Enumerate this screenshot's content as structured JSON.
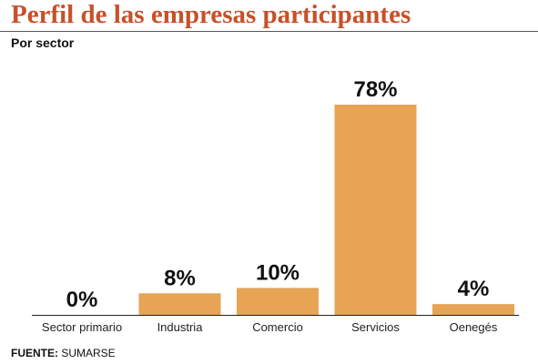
{
  "header": {
    "title": "Perfil de las empresas participantes",
    "subtitle": "Por sector"
  },
  "source": {
    "label": "FUENTE:",
    "text": "SUMARSE"
  },
  "colors": {
    "bar": "#e6a454",
    "title": "#c8502a",
    "axis": "#222222"
  },
  "chart_data": {
    "type": "bar",
    "title": "Perfil de las empresas participantes",
    "subtitle": "Por sector",
    "categories": [
      "Sector primario",
      "Industria",
      "Comercio",
      "Servicios",
      "Oenegés"
    ],
    "values": [
      0,
      8,
      10,
      78,
      4
    ],
    "value_labels": [
      "0%",
      "8%",
      "10%",
      "78%",
      "4%"
    ],
    "xlabel": "",
    "ylabel": "",
    "ylim": [
      0,
      78
    ],
    "grid": false,
    "legend": "none"
  }
}
